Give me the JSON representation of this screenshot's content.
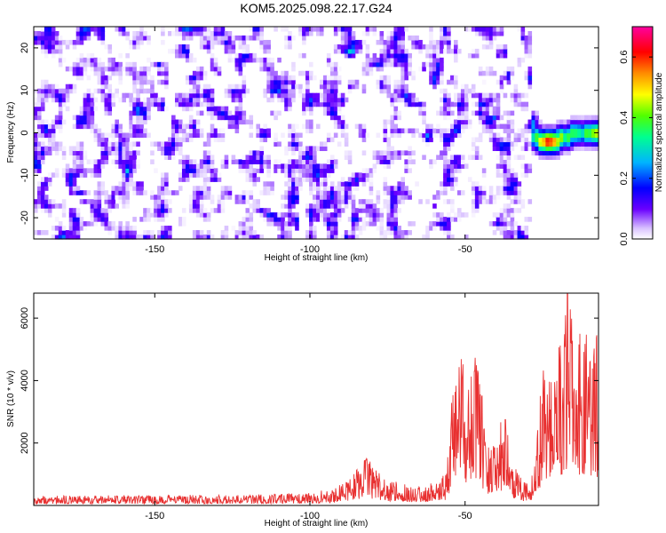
{
  "title": "KOM5.2025.098.22.17.G24",
  "chart_data": [
    {
      "type": "heatmap",
      "xlabel": "Height of straight line (km)",
      "ylabel": "Frequency (Hz)",
      "xlim": [
        -189,
        -7
      ],
      "ylim": [
        -25,
        25
      ],
      "x_ticks": [
        -150,
        -100,
        -50
      ],
      "y_ticks": [
        -20,
        -10,
        0,
        10,
        20
      ],
      "colorbar": {
        "label": "Normalized spectral amplitude",
        "range": [
          0.0,
          0.7
        ],
        "ticks": [
          "0.0",
          "0.2",
          "0.4",
          "0.6"
        ],
        "tick_values": [
          0.0,
          0.2,
          0.4,
          0.6
        ]
      },
      "noise_region_x": [
        -189,
        -29
      ],
      "signal_track": [
        {
          "x": -29,
          "y": 2,
          "v": 0.3
        },
        {
          "x": -27,
          "y": -1,
          "v": 0.4
        },
        {
          "x": -25,
          "y": -2,
          "v": 0.55
        },
        {
          "x": -23,
          "y": -2,
          "v": 0.65
        },
        {
          "x": -21,
          "y": -2,
          "v": 0.55
        },
        {
          "x": -19,
          "y": -1,
          "v": 0.45
        },
        {
          "x": -17,
          "y": -1,
          "v": 0.4
        },
        {
          "x": -15,
          "y": 0,
          "v": 0.4
        },
        {
          "x": -13,
          "y": 0,
          "v": 0.35
        },
        {
          "x": -11,
          "y": 0,
          "v": 0.4
        },
        {
          "x": -9,
          "y": 0,
          "v": 0.45
        },
        {
          "x": -7,
          "y": 0,
          "v": 0.5
        }
      ]
    },
    {
      "type": "line",
      "xlabel": "Height of straight line (km)",
      "ylabel": "SNR (10 * v/v)",
      "xlim": [
        -189,
        -7
      ],
      "ylim": [
        0,
        6800
      ],
      "x_ticks": [
        -150,
        -100,
        -50
      ],
      "y_ticks": [
        2000,
        4000,
        6000
      ],
      "color": "#e83030",
      "envelope": [
        {
          "x": -189,
          "y": 250
        },
        {
          "x": -120,
          "y": 280
        },
        {
          "x": -100,
          "y": 330
        },
        {
          "x": -92,
          "y": 450
        },
        {
          "x": -85,
          "y": 900
        },
        {
          "x": -82,
          "y": 1300
        },
        {
          "x": -78,
          "y": 850
        },
        {
          "x": -72,
          "y": 600
        },
        {
          "x": -62,
          "y": 500
        },
        {
          "x": -56,
          "y": 900
        },
        {
          "x": -54,
          "y": 3000
        },
        {
          "x": -52,
          "y": 3900
        },
        {
          "x": -48,
          "y": 3500
        },
        {
          "x": -46,
          "y": 4000
        },
        {
          "x": -44,
          "y": 2500
        },
        {
          "x": -42,
          "y": 1400
        },
        {
          "x": -39,
          "y": 2100
        },
        {
          "x": -37,
          "y": 2600
        },
        {
          "x": -35,
          "y": 1300
        },
        {
          "x": -32,
          "y": 700
        },
        {
          "x": -29,
          "y": 600
        },
        {
          "x": -27,
          "y": 1700
        },
        {
          "x": -25,
          "y": 3800
        },
        {
          "x": -22,
          "y": 3400
        },
        {
          "x": -20,
          "y": 4100
        },
        {
          "x": -18,
          "y": 5300
        },
        {
          "x": -16,
          "y": 6500
        },
        {
          "x": -14,
          "y": 5000
        },
        {
          "x": -12,
          "y": 4800
        },
        {
          "x": -10,
          "y": 4200
        },
        {
          "x": -8,
          "y": 4300
        },
        {
          "x": -7,
          "y": 4700
        }
      ],
      "peaks": [
        {
          "x": -82,
          "y": 1450
        },
        {
          "x": -47,
          "y": 4300
        },
        {
          "x": -37,
          "y": 2750
        },
        {
          "x": -17,
          "y": 6800
        },
        {
          "x": -13,
          "y": 5500
        }
      ]
    }
  ]
}
